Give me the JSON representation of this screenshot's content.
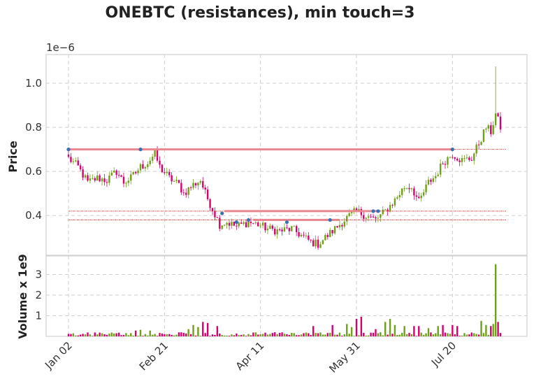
{
  "chart_data": {
    "type": "candlestick",
    "title": "ONEBTC (resistances), min touch=3",
    "price_panel": {
      "ylabel": "Price",
      "offset_label": "1e−6",
      "ylim": [
        0.22,
        1.13
      ],
      "yticks": [
        0.4,
        0.6,
        0.8,
        1.0
      ],
      "ytick_labels": [
        "0.4",
        "0.6",
        "0.8",
        "1.0"
      ],
      "grid": true,
      "resistance_lines": [
        {
          "start_day": 0,
          "end_day": 160,
          "value": 0.7
        },
        {
          "start_day": 65,
          "end_day": 130,
          "value": 0.42
        },
        {
          "start_day": 77,
          "end_day": 113,
          "value": 0.38
        }
      ],
      "dotted_lines": [
        0.42,
        0.38,
        0.7
      ],
      "touch_points": [
        {
          "day": 0,
          "value": 0.7
        },
        {
          "day": 30,
          "value": 0.7
        },
        {
          "day": 160,
          "value": 0.7
        },
        {
          "day": 64,
          "value": 0.41
        },
        {
          "day": 70,
          "value": 0.37
        },
        {
          "day": 75,
          "value": 0.38
        },
        {
          "day": 91,
          "value": 0.37
        },
        {
          "day": 109,
          "value": 0.38
        },
        {
          "day": 127,
          "value": 0.42
        },
        {
          "day": 129,
          "value": 0.42
        }
      ],
      "anchors": [
        [
          0,
          0.66
        ],
        [
          4,
          0.62
        ],
        [
          8,
          0.55
        ],
        [
          12,
          0.57
        ],
        [
          16,
          0.56
        ],
        [
          20,
          0.6
        ],
        [
          23,
          0.55
        ],
        [
          26,
          0.57
        ],
        [
          30,
          0.62
        ],
        [
          33,
          0.64
        ],
        [
          36,
          0.68
        ],
        [
          38,
          0.62
        ],
        [
          42,
          0.57
        ],
        [
          46,
          0.54
        ],
        [
          48,
          0.5
        ],
        [
          52,
          0.54
        ],
        [
          55,
          0.56
        ],
        [
          57,
          0.5
        ],
        [
          60,
          0.43
        ],
        [
          63,
          0.36
        ],
        [
          66,
          0.37
        ],
        [
          70,
          0.35
        ],
        [
          75,
          0.37
        ],
        [
          79,
          0.36
        ],
        [
          83,
          0.34
        ],
        [
          88,
          0.33
        ],
        [
          93,
          0.34
        ],
        [
          97,
          0.31
        ],
        [
          101,
          0.28
        ],
        [
          104,
          0.27
        ],
        [
          108,
          0.31
        ],
        [
          112,
          0.35
        ],
        [
          116,
          0.39
        ],
        [
          120,
          0.42
        ],
        [
          124,
          0.4
        ],
        [
          128,
          0.38
        ],
        [
          132,
          0.42
        ],
        [
          136,
          0.47
        ],
        [
          140,
          0.53
        ],
        [
          143,
          0.53
        ],
        [
          146,
          0.46
        ],
        [
          150,
          0.55
        ],
        [
          153,
          0.58
        ],
        [
          156,
          0.64
        ],
        [
          160,
          0.68
        ],
        [
          164,
          0.65
        ],
        [
          168,
          0.66
        ],
        [
          172,
          0.75
        ],
        [
          174,
          0.8
        ],
        [
          176,
          0.78
        ],
        [
          178,
          0.86
        ],
        [
          180,
          0.8
        ]
      ]
    },
    "volume_panel": {
      "ylabel": "Volume x 1e9",
      "ylim": [
        0,
        3.9
      ],
      "yticks": [
        1,
        2,
        3
      ],
      "ytick_labels": [
        "1",
        "2",
        "3"
      ],
      "grid": true,
      "spikes": [
        {
          "day": 0,
          "value": 0.12
        },
        {
          "day": 28,
          "value": 0.28
        },
        {
          "day": 30,
          "value": 0.32
        },
        {
          "day": 34,
          "value": 0.28
        },
        {
          "day": 50,
          "value": 0.35
        },
        {
          "day": 52,
          "value": 0.55
        },
        {
          "day": 54,
          "value": 0.45
        },
        {
          "day": 56,
          "value": 0.7
        },
        {
          "day": 58,
          "value": 0.65
        },
        {
          "day": 62,
          "value": 0.5
        },
        {
          "day": 86,
          "value": 0.2
        },
        {
          "day": 102,
          "value": 0.5
        },
        {
          "day": 110,
          "value": 0.55
        },
        {
          "day": 116,
          "value": 0.6
        },
        {
          "day": 118,
          "value": 0.45
        },
        {
          "day": 120,
          "value": 0.85
        },
        {
          "day": 122,
          "value": 0.95
        },
        {
          "day": 128,
          "value": 0.35
        },
        {
          "day": 132,
          "value": 0.7
        },
        {
          "day": 134,
          "value": 0.85
        },
        {
          "day": 136,
          "value": 0.55
        },
        {
          "day": 140,
          "value": 0.5
        },
        {
          "day": 144,
          "value": 0.5
        },
        {
          "day": 146,
          "value": 0.5
        },
        {
          "day": 150,
          "value": 0.4
        },
        {
          "day": 154,
          "value": 0.5
        },
        {
          "day": 156,
          "value": 0.55
        },
        {
          "day": 160,
          "value": 0.55
        },
        {
          "day": 162,
          "value": 0.5
        },
        {
          "day": 172,
          "value": 0.75
        },
        {
          "day": 174,
          "value": 0.55
        },
        {
          "day": 176,
          "value": 0.5
        },
        {
          "day": 177,
          "value": 0.6
        },
        {
          "day": 178,
          "value": 3.5
        },
        {
          "day": 179,
          "value": 0.7
        }
      ]
    },
    "x_axis": {
      "day_count": 181,
      "tick_days": [
        0,
        40,
        80,
        120,
        160
      ],
      "tick_labels": [
        "Jan 02",
        "Feb 21",
        "Apr 11",
        "May 31",
        "Jul 20"
      ]
    },
    "colors": {
      "up": "#6fa01a",
      "down": "#d6006f",
      "resistance": "#e8878e",
      "dotted": "#d04848",
      "touch": "#3a6fb0",
      "grid": "#cfcfcf",
      "frame": "#d0d0d0"
    }
  }
}
